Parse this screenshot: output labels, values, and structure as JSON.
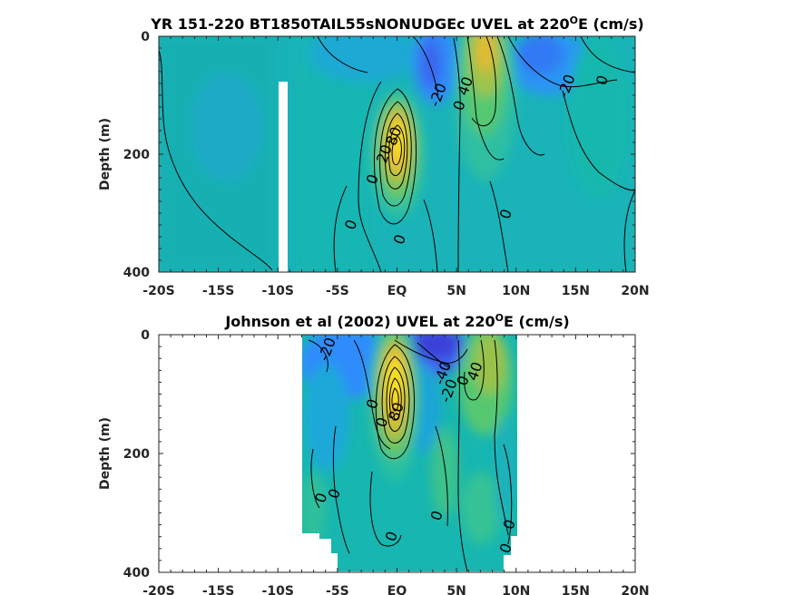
{
  "chart_data": [
    {
      "type": "contour",
      "title_prefix": "YR 151-220 BT1850TAIL55sNONUDGEc UVEL at 220",
      "title_sup": "O",
      "title_suffix": "E (cm/s)",
      "ylabel": "Depth (m)",
      "xlabel": "",
      "x_ticks": [
        "-20S",
        "-15S",
        "-10S",
        "-5S",
        "EQ",
        "5N",
        "10N",
        "15N",
        "20N"
      ],
      "x_tick_values": [
        -20,
        -15,
        -10,
        -5,
        0,
        5,
        10,
        15,
        20
      ],
      "y_ticks": [
        "0",
        "200",
        "400"
      ],
      "y_tick_values": [
        0,
        200,
        400
      ],
      "xlim": [
        -20,
        20
      ],
      "ylim": [
        0,
        400
      ],
      "y_reversed": true,
      "contour_interval": 20,
      "features": [
        {
          "name": "Equatorial Undercurrent",
          "x": 0,
          "depth": 175,
          "max_speed": 80
        },
        {
          "name": "NECC",
          "x": 7,
          "depth": 25,
          "max_speed": 40
        },
        {
          "name": "SEC (north branch)",
          "x": 3,
          "depth": 30,
          "min_speed": -40
        },
        {
          "name": "NEC",
          "x": 13,
          "depth": 30,
          "min_speed": -20
        }
      ],
      "contour_labels": [
        {
          "text": "-20",
          "x": 3.5,
          "depth": 100
        },
        {
          "text": "40",
          "x": 5.8,
          "depth": 85
        },
        {
          "text": "0",
          "x": 5.3,
          "depth": 118
        },
        {
          "text": "-20",
          "x": 14.3,
          "depth": 85
        },
        {
          "text": "0",
          "x": 17.3,
          "depth": 75
        },
        {
          "text": "80",
          "x": -0.2,
          "depth": 170
        },
        {
          "text": "20",
          "x": -1.0,
          "depth": 200
        },
        {
          "text": "0",
          "x": -2.0,
          "depth": 243
        },
        {
          "text": "0",
          "x": -3.8,
          "depth": 320
        },
        {
          "text": "0",
          "x": 0.3,
          "depth": 345
        },
        {
          "text": "0",
          "x": 9.2,
          "depth": 302
        }
      ]
    },
    {
      "type": "contour",
      "title_prefix": "Johnson et al (2002) UVEL at 220",
      "title_sup": "O",
      "title_suffix": "E (cm/s)",
      "ylabel": "Depth (m)",
      "xlabel": "",
      "x_ticks": [
        "-20S",
        "-15S",
        "-10S",
        "-5S",
        "EQ",
        "5N",
        "10N",
        "15N",
        "20N"
      ],
      "x_tick_values": [
        -20,
        -15,
        -10,
        -5,
        0,
        5,
        10,
        15,
        20
      ],
      "y_ticks": [
        "0",
        "200",
        "400"
      ],
      "y_tick_values": [
        0,
        200,
        400
      ],
      "xlim": [
        -20,
        20
      ],
      "ylim": [
        0,
        400
      ],
      "y_reversed": true,
      "data_extent_x": [
        -8,
        10
      ],
      "contour_interval": 20,
      "features": [
        {
          "name": "Equatorial Undercurrent",
          "x": 0,
          "depth": 110,
          "max_speed": 100
        },
        {
          "name": "NECC",
          "x": 7,
          "depth": 60,
          "max_speed": 40
        },
        {
          "name": "SEC",
          "x": 3,
          "depth": 20,
          "min_speed": -40
        },
        {
          "name": "SEC (south)",
          "x": -5,
          "depth": 40,
          "min_speed": -20
        }
      ],
      "contour_labels": [
        {
          "text": "-20",
          "x": -5.8,
          "depth": 25
        },
        {
          "text": "-40",
          "x": 3.9,
          "depth": 65
        },
        {
          "text": "-20",
          "x": 4.4,
          "depth": 95
        },
        {
          "text": "40",
          "x": 6.6,
          "depth": 62
        },
        {
          "text": "0",
          "x": 5.6,
          "depth": 78
        },
        {
          "text": "80",
          "x": 0.0,
          "depth": 130
        },
        {
          "text": "0",
          "x": -2.0,
          "depth": 117
        },
        {
          "text": "0",
          "x": -1.2,
          "depth": 148
        },
        {
          "text": "0",
          "x": -6.3,
          "depth": 275
        },
        {
          "text": "0",
          "x": -5.2,
          "depth": 268
        },
        {
          "text": "0",
          "x": 3.4,
          "depth": 305
        },
        {
          "text": "0",
          "x": 9.5,
          "depth": 320
        },
        {
          "text": "0",
          "x": 9.2,
          "depth": 360
        },
        {
          "text": "0",
          "x": -0.4,
          "depth": 340
        }
      ]
    }
  ],
  "colormap": [
    "#3e26a8",
    "#4a5ef5",
    "#2f8cfc",
    "#1da9d9",
    "#12bdaf",
    "#5cc86b",
    "#bdbd3a",
    "#fcbd3c",
    "#f9fb15"
  ]
}
